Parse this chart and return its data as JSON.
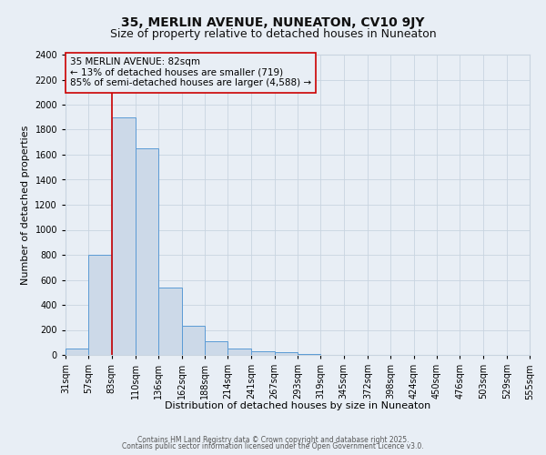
{
  "title1": "35, MERLIN AVENUE, NUNEATON, CV10 9JY",
  "title2": "Size of property relative to detached houses in Nuneaton",
  "xlabel": "Distribution of detached houses by size in Nuneaton",
  "ylabel": "Number of detached properties",
  "bar_values": [
    50,
    800,
    1900,
    1650,
    540,
    235,
    110,
    50,
    30,
    20,
    5,
    2,
    1,
    0,
    0,
    0,
    0,
    0,
    0,
    0
  ],
  "bin_edges": [
    31,
    57,
    83,
    110,
    136,
    162,
    188,
    214,
    241,
    267,
    293,
    319,
    345,
    372,
    398,
    424,
    450,
    476,
    503,
    529,
    555
  ],
  "bar_color": "#ccd9e8",
  "bar_edge_color": "#5b9bd5",
  "grid_color": "#c8d4e0",
  "bg_color": "#e8eef5",
  "vline_x": 83,
  "vline_color": "#cc0000",
  "annotation_text": "35 MERLIN AVENUE: 82sqm\n← 13% of detached houses are smaller (719)\n85% of semi-detached houses are larger (4,588) →",
  "annotation_box_color": "#cc0000",
  "ylim": [
    0,
    2400
  ],
  "yticks": [
    0,
    200,
    400,
    600,
    800,
    1000,
    1200,
    1400,
    1600,
    1800,
    2000,
    2200,
    2400
  ],
  "footer1": "Contains HM Land Registry data © Crown copyright and database right 2025.",
  "footer2": "Contains public sector information licensed under the Open Government Licence v3.0.",
  "title1_fontsize": 10,
  "title2_fontsize": 9,
  "xlabel_fontsize": 8,
  "ylabel_fontsize": 8,
  "tick_fontsize": 7,
  "annotation_fontsize": 7.5,
  "footer_fontsize": 5.5
}
